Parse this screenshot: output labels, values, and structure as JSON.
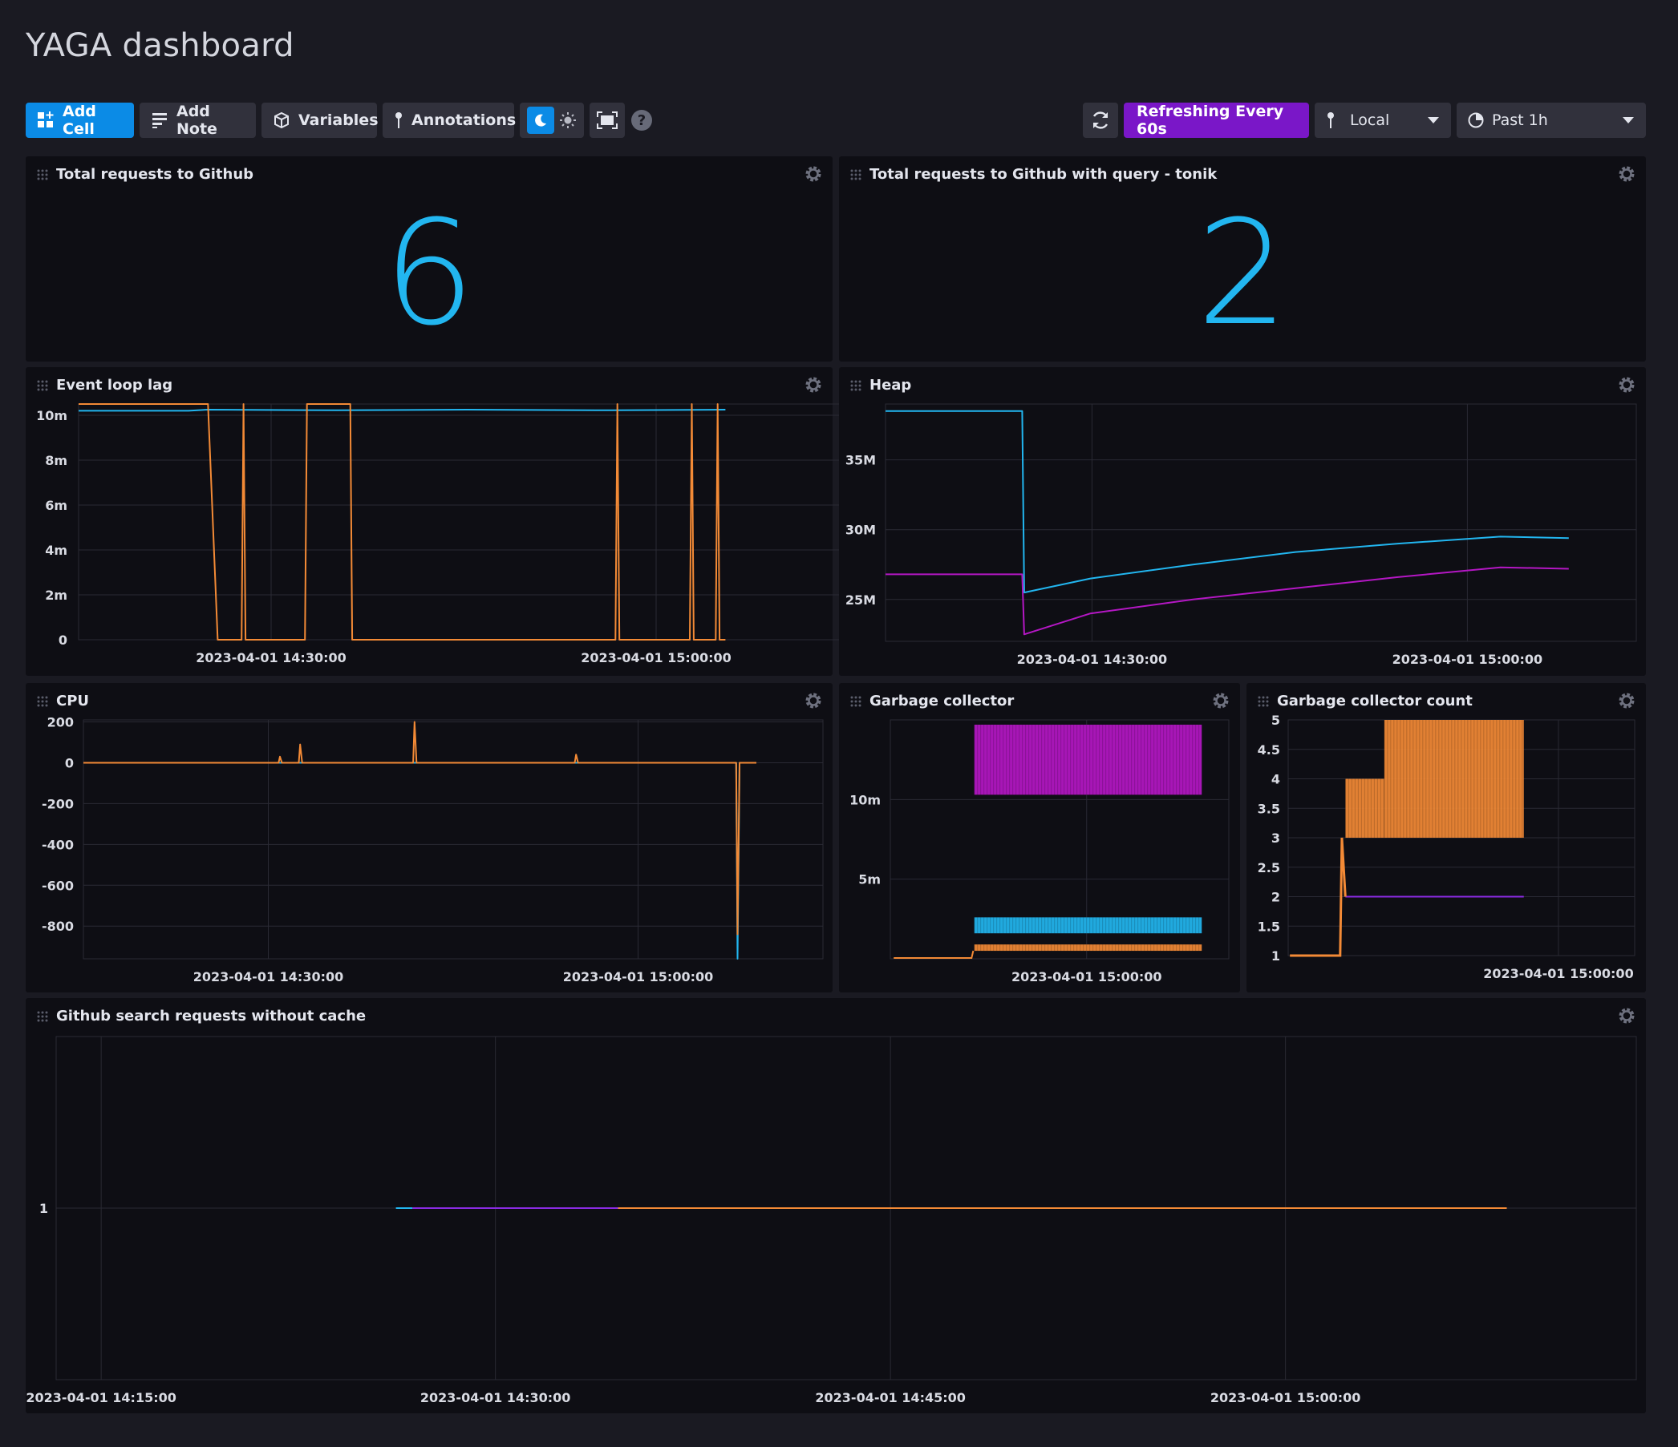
{
  "dashboard": {
    "title": "YAGA dashboard"
  },
  "toolbar": {
    "add_cell": "Add Cell",
    "add_note": "Add Note",
    "variables": "Variables",
    "annotations": "Annotations",
    "refreshing": "Refreshing Every 60s",
    "timezone": "Local",
    "time_range": "Past 1h"
  },
  "cells": {
    "total": {
      "title": "Total requests to Github",
      "value": "6"
    },
    "tonik": {
      "title": "Total requests to Github with query - tonik",
      "value": "2"
    },
    "event_loop": {
      "title": "Event loop lag"
    },
    "heap": {
      "title": "Heap"
    },
    "cpu": {
      "title": "CPU"
    },
    "gc": {
      "title": "Garbage collector"
    },
    "gc_count": {
      "title": "Garbage collector count"
    },
    "search": {
      "title": "Github search requests without cache"
    }
  },
  "colors": {
    "blue": "#22b6f0",
    "orange": "#f38a36",
    "purple": "#b417c4",
    "violet": "#8a2be2",
    "accent": "#0b8be6",
    "refresh": "#7a17c8"
  },
  "chart_data": [
    {
      "id": "event_loop",
      "type": "line",
      "title": "Event loop lag",
      "yticks": [
        "0",
        "2m",
        "4m",
        "6m",
        "8m",
        "10m"
      ],
      "ylim": [
        0,
        10.5
      ],
      "xticks": [
        "2023-04-01 14:30:00",
        "2023-04-01 15:00:00"
      ],
      "series": [
        {
          "color": "#22b6f0",
          "points": [
            [
              0,
              10.2
            ],
            [
              0.17,
              10.2
            ],
            [
              0.2,
              10.25
            ],
            [
              0.4,
              10.22
            ],
            [
              0.6,
              10.25
            ],
            [
              0.8,
              10.22
            ],
            [
              1,
              10.25
            ]
          ]
        },
        {
          "color": "#f38a36",
          "points": [
            [
              0,
              10.5
            ],
            [
              0.2,
              10.5
            ],
            [
              0.215,
              0
            ],
            [
              0.252,
              0
            ],
            [
              0.255,
              10.5
            ],
            [
              0.258,
              0
            ],
            [
              0.35,
              0
            ],
            [
              0.353,
              10.5
            ],
            [
              0.42,
              10.5
            ],
            [
              0.423,
              0
            ],
            [
              0.83,
              0
            ],
            [
              0.833,
              10.5
            ],
            [
              0.836,
              0
            ],
            [
              0.945,
              0
            ],
            [
              0.948,
              10.5
            ],
            [
              0.951,
              0
            ],
            [
              0.985,
              0
            ],
            [
              0.988,
              10.5
            ],
            [
              0.991,
              0
            ],
            [
              1,
              0
            ]
          ]
        }
      ]
    },
    {
      "id": "heap",
      "type": "line",
      "title": "Heap",
      "yticks": [
        "25M",
        "30M",
        "35M"
      ],
      "ylim": [
        22,
        39
      ],
      "xticks": [
        "2023-04-01 14:30:00",
        "2023-04-01 15:00:00"
      ],
      "series": [
        {
          "color": "#22b6f0",
          "points": [
            [
              0,
              38.5
            ],
            [
              0.2,
              38.5
            ],
            [
              0.203,
              25.5
            ],
            [
              0.3,
              26.5
            ],
            [
              0.45,
              27.5
            ],
            [
              0.6,
              28.4
            ],
            [
              0.75,
              29
            ],
            [
              0.9,
              29.5
            ],
            [
              1,
              29.4
            ]
          ]
        },
        {
          "color": "#b417c4",
          "points": [
            [
              0,
              26.8
            ],
            [
              0.2,
              26.8
            ],
            [
              0.203,
              22.5
            ],
            [
              0.3,
              24
            ],
            [
              0.45,
              25
            ],
            [
              0.6,
              25.8
            ],
            [
              0.75,
              26.6
            ],
            [
              0.9,
              27.3
            ],
            [
              1,
              27.2
            ]
          ]
        }
      ]
    },
    {
      "id": "cpu",
      "type": "line",
      "title": "CPU",
      "yticks": [
        "-800",
        "-600",
        "-400",
        "-200",
        "0",
        "200"
      ],
      "ylim": [
        -960,
        210
      ],
      "xticks": [
        "2023-04-01 14:30:00",
        "2023-04-01 15:00:00"
      ],
      "series": [
        {
          "color": "#22b6f0",
          "points": [
            [
              0,
              0
            ],
            [
              0.97,
              0
            ],
            [
              0.972,
              -960
            ],
            [
              0.975,
              0
            ],
            [
              1,
              0
            ]
          ]
        },
        {
          "color": "#f38a36",
          "points": [
            [
              0,
              0
            ],
            [
              0.29,
              0
            ],
            [
              0.292,
              30
            ],
            [
              0.295,
              0
            ],
            [
              0.32,
              0
            ],
            [
              0.322,
              90
            ],
            [
              0.325,
              0
            ],
            [
              0.49,
              0
            ],
            [
              0.492,
              200
            ],
            [
              0.495,
              0
            ],
            [
              0.73,
              0
            ],
            [
              0.732,
              40
            ],
            [
              0.735,
              0
            ],
            [
              0.97,
              0
            ],
            [
              0.972,
              -840
            ],
            [
              0.975,
              0
            ],
            [
              1,
              0
            ]
          ]
        }
      ]
    },
    {
      "id": "gc",
      "type": "band",
      "title": "Garbage collector",
      "yticks": [
        "5m",
        "10m"
      ],
      "ylim": [
        0,
        15
      ],
      "xticks": [
        "2023-04-01 15:00:00"
      ],
      "series": [
        {
          "color": "#b417c4",
          "band": [
            10.3,
            14.7
          ],
          "x": [
            0.2,
            1
          ]
        },
        {
          "color": "#22b6f0",
          "band": [
            1.6,
            2.6
          ],
          "x": [
            0.2,
            1
          ]
        },
        {
          "color": "#f38a36",
          "band": [
            0.5,
            0.9
          ],
          "x": [
            0.2,
            1
          ]
        }
      ]
    },
    {
      "id": "gc_count",
      "type": "band",
      "title": "Garbage collector count",
      "yticks": [
        "1",
        "1.5",
        "2",
        "2.5",
        "3",
        "3.5",
        "4",
        "4.5",
        "5"
      ],
      "ylim": [
        1,
        5
      ],
      "xticks": [
        "2023-04-01 15:00:00"
      ],
      "series": [
        {
          "color": "#f38a36",
          "band": [
            3,
            4
          ],
          "x": [
            0.22,
            0.39
          ]
        },
        {
          "color": "#f38a36",
          "band": [
            3,
            5
          ],
          "x": [
            0.39,
            1
          ]
        },
        {
          "color": "#8a2be2",
          "band": [
            2,
            2
          ],
          "x": [
            0.22,
            1
          ]
        }
      ]
    },
    {
      "id": "search",
      "type": "line",
      "title": "Github search requests without cache",
      "yticks": [
        "1"
      ],
      "ylim": [
        0,
        2
      ],
      "xticks": [
        "2023-04-01 14:15:00",
        "2023-04-01 14:30:00",
        "2023-04-01 14:45:00",
        "2023-04-01 15:00:00"
      ],
      "series": [
        {
          "color": "#22b6f0",
          "points": [
            [
              0,
              1
            ],
            [
              0.015,
              1
            ]
          ]
        },
        {
          "color": "#8a2be2",
          "points": [
            [
              0.015,
              1
            ],
            [
              0.2,
              1
            ]
          ]
        },
        {
          "color": "#f38a36",
          "points": [
            [
              0.2,
              1
            ],
            [
              1,
              1
            ]
          ]
        }
      ]
    }
  ]
}
